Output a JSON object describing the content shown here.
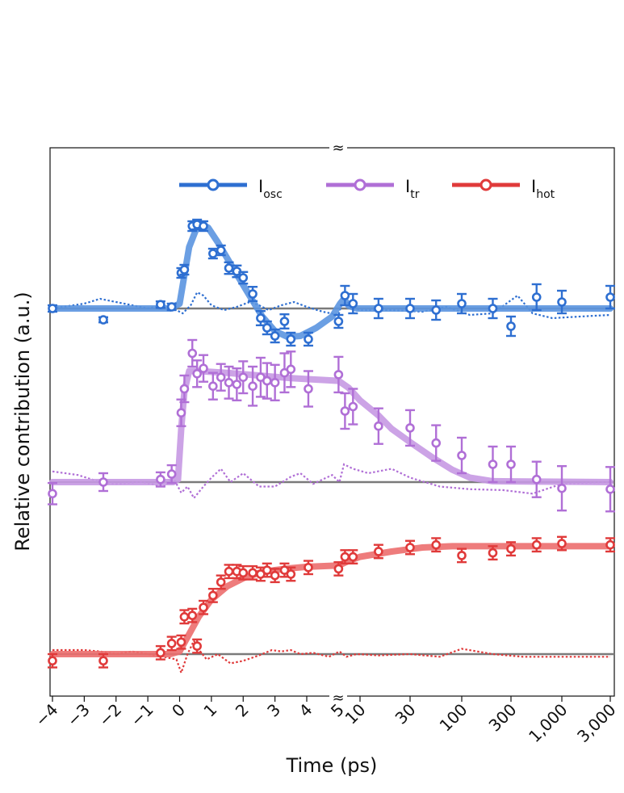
{
  "chart_data": {
    "type": "line",
    "xlabel": "Time (ps)",
    "ylabel": "Relative contribution (a.u.)",
    "x_scale": "piecewise: linear from -4 to 5 ps, logarithmic from 5 to 3,000 ps (axis break between 5 and 10)",
    "x_tick_labels": [
      "−4",
      "−3",
      "−2",
      "−1",
      "0",
      "1",
      "2",
      "3",
      "4",
      "5",
      "10",
      "30",
      "100",
      "300",
      "1,000",
      "3,000"
    ],
    "x_ticks": [
      -4,
      -3,
      -2,
      -1,
      0,
      1,
      2,
      3,
      4,
      5,
      10,
      30,
      100,
      300,
      1000,
      3000
    ],
    "axis_break_symbol": "≈",
    "legend_position": "top",
    "series": [
      {
        "name": "I",
        "subscript": "osc",
        "legend_label": "Iosc",
        "color": "#2e6fd1",
        "fit_color": "#5b95e0",
        "baseline": 0,
        "points": [
          [
            -4,
            0.0,
            0.1
          ],
          [
            -2.4,
            -0.35,
            0.08
          ],
          [
            -0.6,
            0.12,
            0.1
          ],
          [
            -0.25,
            0.05,
            0.1
          ],
          [
            0.05,
            1.1,
            0.15
          ],
          [
            0.15,
            1.2,
            0.15
          ],
          [
            0.4,
            2.55,
            0.15
          ],
          [
            0.55,
            2.6,
            0.15
          ],
          [
            0.75,
            2.55,
            0.15
          ],
          [
            1.05,
            1.7,
            0.15
          ],
          [
            1.3,
            1.8,
            0.15
          ],
          [
            1.55,
            1.25,
            0.18
          ],
          [
            1.8,
            1.15,
            0.18
          ],
          [
            2.0,
            0.95,
            0.18
          ],
          [
            2.3,
            0.45,
            0.22
          ],
          [
            2.55,
            -0.3,
            0.22
          ],
          [
            2.75,
            -0.6,
            0.2
          ],
          [
            3.0,
            -0.85,
            0.2
          ],
          [
            3.3,
            -0.4,
            0.22
          ],
          [
            3.5,
            -0.95,
            0.2
          ],
          [
            4.05,
            -0.95,
            0.2
          ],
          [
            5.0,
            -0.4,
            0.2
          ],
          [
            6.2,
            0.4,
            0.3
          ],
          [
            8.0,
            0.15,
            0.3
          ],
          [
            15,
            0.0,
            0.3
          ],
          [
            30,
            0.0,
            0.3
          ],
          [
            55,
            -0.05,
            0.3
          ],
          [
            100,
            0.15,
            0.3
          ],
          [
            200,
            0.0,
            0.3
          ],
          [
            300,
            -0.55,
            0.3
          ],
          [
            550,
            0.35,
            0.4
          ],
          [
            1000,
            0.2,
            0.35
          ],
          [
            3000,
            0.35,
            0.35
          ]
        ],
        "fit": [
          [
            -4,
            0
          ],
          [
            -0.3,
            0
          ],
          [
            0,
            0.15
          ],
          [
            0.3,
            1.9
          ],
          [
            0.6,
            2.65
          ],
          [
            0.9,
            2.5
          ],
          [
            1.2,
            2.05
          ],
          [
            1.5,
            1.55
          ],
          [
            1.8,
            1.05
          ],
          [
            2.2,
            0.4
          ],
          [
            2.6,
            -0.25
          ],
          [
            3.0,
            -0.7
          ],
          [
            3.4,
            -0.88
          ],
          [
            3.8,
            -0.85
          ],
          [
            4.3,
            -0.6
          ],
          [
            4.8,
            -0.25
          ],
          [
            5.3,
            0.15
          ],
          [
            6,
            0.3
          ],
          [
            7,
            0.08
          ],
          [
            9,
            0
          ],
          [
            3000,
            0
          ]
        ],
        "residual": [
          [
            -4,
            0.0
          ],
          [
            -3,
            0.15
          ],
          [
            -2.5,
            0.3
          ],
          [
            -2,
            0.2
          ],
          [
            -1.5,
            0.1
          ],
          [
            -1,
            0.0
          ],
          [
            -0.5,
            0.1
          ],
          [
            -0.2,
            0.0
          ],
          [
            0.1,
            -0.15
          ],
          [
            0.35,
            0.1
          ],
          [
            0.55,
            0.5
          ],
          [
            0.75,
            0.4
          ],
          [
            1.0,
            0.1
          ],
          [
            1.4,
            -0.05
          ],
          [
            1.8,
            0.05
          ],
          [
            2.2,
            0.2
          ],
          [
            2.5,
            0.1
          ],
          [
            2.8,
            -0.05
          ],
          [
            3.2,
            0.1
          ],
          [
            3.6,
            0.2
          ],
          [
            4.0,
            0.05
          ],
          [
            4.5,
            -0.1
          ],
          [
            5.0,
            -0.2
          ],
          [
            5.5,
            0.1
          ],
          [
            6.5,
            0.2
          ],
          [
            8,
            0.05
          ],
          [
            10,
            -0.05
          ],
          [
            20,
            -0.05
          ],
          [
            40,
            -0.1
          ],
          [
            70,
            0.05
          ],
          [
            120,
            -0.2
          ],
          [
            200,
            -0.15
          ],
          [
            350,
            0.4
          ],
          [
            500,
            -0.15
          ],
          [
            800,
            -0.3
          ],
          [
            1500,
            -0.25
          ],
          [
            3000,
            -0.2
          ]
        ]
      },
      {
        "name": "I",
        "subscript": "tr",
        "legend_label": "Itr",
        "color": "#b06fd6",
        "fit_color": "#c799e3",
        "baseline": 0,
        "points": [
          [
            -4,
            -0.13,
            0.12
          ],
          [
            -2.4,
            0.0,
            0.1
          ],
          [
            -0.6,
            0.03,
            0.08
          ],
          [
            -0.25,
            0.09,
            0.1
          ],
          [
            0.05,
            0.78,
            0.15
          ],
          [
            0.15,
            1.05,
            0.15
          ],
          [
            0.4,
            1.45,
            0.15
          ],
          [
            0.55,
            1.22,
            0.15
          ],
          [
            0.75,
            1.28,
            0.15
          ],
          [
            1.05,
            1.08,
            0.15
          ],
          [
            1.3,
            1.18,
            0.15
          ],
          [
            1.55,
            1.12,
            0.18
          ],
          [
            1.8,
            1.1,
            0.18
          ],
          [
            2.0,
            1.18,
            0.18
          ],
          [
            2.3,
            1.08,
            0.22
          ],
          [
            2.55,
            1.18,
            0.22
          ],
          [
            2.75,
            1.14,
            0.2
          ],
          [
            3.0,
            1.12,
            0.2
          ],
          [
            3.3,
            1.23,
            0.22
          ],
          [
            3.5,
            1.27,
            0.2
          ],
          [
            4.05,
            1.05,
            0.2
          ],
          [
            5.0,
            1.21,
            0.2
          ],
          [
            6.2,
            0.8,
            0.2
          ],
          [
            8.0,
            0.85,
            0.2
          ],
          [
            15,
            0.63,
            0.2
          ],
          [
            30,
            0.61,
            0.2
          ],
          [
            55,
            0.44,
            0.2
          ],
          [
            100,
            0.3,
            0.2
          ],
          [
            200,
            0.2,
            0.2
          ],
          [
            300,
            0.2,
            0.2
          ],
          [
            550,
            0.03,
            0.2
          ],
          [
            1000,
            -0.07,
            0.25
          ],
          [
            3000,
            -0.08,
            0.25
          ]
        ],
        "fit": [
          [
            -4,
            0
          ],
          [
            -0.2,
            0
          ],
          [
            -0.05,
            0.03
          ],
          [
            0.05,
            0.6
          ],
          [
            0.15,
            1.02
          ],
          [
            0.3,
            1.25
          ],
          [
            0.6,
            1.25
          ],
          [
            1.5,
            1.23
          ],
          [
            2.5,
            1.2
          ],
          [
            3.5,
            1.17
          ],
          [
            4.5,
            1.15
          ],
          [
            5,
            1.14
          ],
          [
            7,
            1.06
          ],
          [
            10,
            0.92
          ],
          [
            15,
            0.75
          ],
          [
            20,
            0.6
          ],
          [
            30,
            0.45
          ],
          [
            50,
            0.28
          ],
          [
            80,
            0.14
          ],
          [
            120,
            0.05
          ],
          [
            200,
            0.01
          ],
          [
            3000,
            0
          ]
        ],
        "residual": [
          [
            -4,
            0.12
          ],
          [
            -3.2,
            0.08
          ],
          [
            -2.5,
            0.0
          ],
          [
            -2,
            -0.02
          ],
          [
            -1.2,
            0.0
          ],
          [
            -0.5,
            -0.05
          ],
          [
            -0.2,
            0.05
          ],
          [
            0.05,
            -0.12
          ],
          [
            0.25,
            -0.05
          ],
          [
            0.45,
            -0.18
          ],
          [
            0.75,
            -0.05
          ],
          [
            1.0,
            0.05
          ],
          [
            1.3,
            0.15
          ],
          [
            1.6,
            0.0
          ],
          [
            2.0,
            0.1
          ],
          [
            2.5,
            -0.05
          ],
          [
            3.0,
            -0.05
          ],
          [
            3.5,
            0.06
          ],
          [
            3.8,
            0.1
          ],
          [
            4.2,
            -0.02
          ],
          [
            4.8,
            0.08
          ],
          [
            5.2,
            0.0
          ],
          [
            6,
            0.2
          ],
          [
            8,
            0.15
          ],
          [
            12,
            0.1
          ],
          [
            20,
            0.15
          ],
          [
            30,
            0.05
          ],
          [
            60,
            -0.05
          ],
          [
            120,
            -0.08
          ],
          [
            250,
            -0.09
          ],
          [
            500,
            -0.13
          ],
          [
            1000,
            -0.02
          ],
          [
            3000,
            0.0
          ]
        ]
      },
      {
        "name": "I",
        "subscript": "hot",
        "legend_label": "Ihot",
        "color": "#e03a3a",
        "fit_color": "#ec6e6e",
        "baseline": 0,
        "points": [
          [
            -4,
            -0.05,
            0.05
          ],
          [
            -2.4,
            -0.05,
            0.05
          ],
          [
            -0.6,
            0.01,
            0.05
          ],
          [
            -0.25,
            0.08,
            0.05
          ],
          [
            0.05,
            0.09,
            0.05
          ],
          [
            0.15,
            0.28,
            0.05
          ],
          [
            0.4,
            0.29,
            0.05
          ],
          [
            0.55,
            0.06,
            0.05
          ],
          [
            0.75,
            0.35,
            0.05
          ],
          [
            1.05,
            0.44,
            0.05
          ],
          [
            1.3,
            0.54,
            0.05
          ],
          [
            1.55,
            0.62,
            0.05
          ],
          [
            1.8,
            0.62,
            0.05
          ],
          [
            2.0,
            0.61,
            0.05
          ],
          [
            2.3,
            0.61,
            0.05
          ],
          [
            2.55,
            0.6,
            0.05
          ],
          [
            2.75,
            0.63,
            0.05
          ],
          [
            3.0,
            0.59,
            0.05
          ],
          [
            3.3,
            0.63,
            0.05
          ],
          [
            3.5,
            0.6,
            0.05
          ],
          [
            4.05,
            0.65,
            0.05
          ],
          [
            5.0,
            0.64,
            0.05
          ],
          [
            6.2,
            0.73,
            0.05
          ],
          [
            8.0,
            0.73,
            0.05
          ],
          [
            15,
            0.77,
            0.05
          ],
          [
            30,
            0.8,
            0.05
          ],
          [
            55,
            0.82,
            0.05
          ],
          [
            100,
            0.74,
            0.05
          ],
          [
            200,
            0.76,
            0.05
          ],
          [
            300,
            0.79,
            0.05
          ],
          [
            550,
            0.82,
            0.05
          ],
          [
            1000,
            0.83,
            0.05
          ],
          [
            3000,
            0.82,
            0.05
          ]
        ],
        "fit": [
          [
            -4,
            0
          ],
          [
            -0.3,
            0
          ],
          [
            0,
            0.02
          ],
          [
            0.3,
            0.15
          ],
          [
            0.6,
            0.28
          ],
          [
            1.0,
            0.41
          ],
          [
            1.5,
            0.51
          ],
          [
            2.0,
            0.57
          ],
          [
            2.5,
            0.61
          ],
          [
            3.0,
            0.63
          ],
          [
            3.5,
            0.645
          ],
          [
            4.0,
            0.655
          ],
          [
            5,
            0.665
          ],
          [
            7,
            0.7
          ],
          [
            10,
            0.73
          ],
          [
            20,
            0.77
          ],
          [
            40,
            0.8
          ],
          [
            80,
            0.81
          ],
          [
            200,
            0.81
          ],
          [
            3000,
            0.81
          ]
        ],
        "residual": [
          [
            -4,
            0.03
          ],
          [
            -3,
            0.03
          ],
          [
            -2.5,
            0.02
          ],
          [
            -2,
            0.0
          ],
          [
            -1.5,
            0.02
          ],
          [
            -1,
            0.0
          ],
          [
            -0.5,
            -0.02
          ],
          [
            -0.1,
            -0.04
          ],
          [
            0.05,
            -0.14
          ],
          [
            0.25,
            0.0
          ],
          [
            0.45,
            0.1
          ],
          [
            0.65,
            0.02
          ],
          [
            0.85,
            -0.04
          ],
          [
            1.2,
            0.0
          ],
          [
            1.6,
            -0.07
          ],
          [
            2.0,
            -0.05
          ],
          [
            2.5,
            -0.01
          ],
          [
            2.9,
            0.03
          ],
          [
            3.2,
            0.02
          ],
          [
            3.5,
            0.03
          ],
          [
            3.8,
            0.0
          ],
          [
            4.2,
            0.01
          ],
          [
            4.7,
            -0.02
          ],
          [
            5.2,
            0.02
          ],
          [
            6.5,
            -0.02
          ],
          [
            9,
            0.0
          ],
          [
            15,
            -0.01
          ],
          [
            30,
            0.0
          ],
          [
            60,
            -0.02
          ],
          [
            100,
            0.04
          ],
          [
            200,
            0.0
          ],
          [
            400,
            -0.02
          ],
          [
            1000,
            -0.02
          ],
          [
            3000,
            -0.02
          ]
        ]
      }
    ]
  }
}
